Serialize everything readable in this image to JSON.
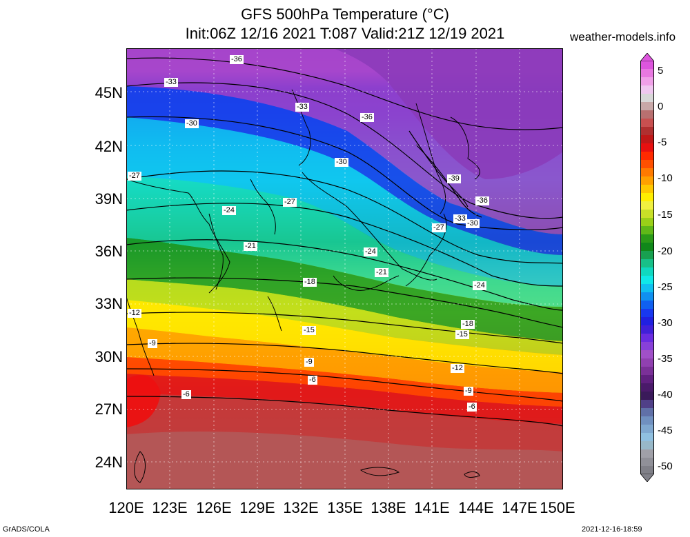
{
  "title_line1": "GFS 500hPa Temperature (°C)",
  "title_line2": "Init:06Z 12/16 2021 T:087 Valid:21Z 12/19 2021",
  "site": "weather-models.info",
  "lat_labels": [
    "45N",
    "42N",
    "39N",
    "36N",
    "33N",
    "30N",
    "27N",
    "24N"
  ],
  "lon_labels": [
    "120E",
    "123E",
    "126E",
    "129E",
    "132E",
    "135E",
    "138E",
    "141E",
    "144E",
    "147E",
    "150E"
  ],
  "contour_labels": [
    "-36",
    "-33",
    "-33",
    "-36",
    "-30",
    "-30",
    "-27",
    "-39",
    "-36",
    "-27",
    "-24",
    "-33",
    "-30",
    "-27",
    "-21",
    "-24",
    "-21",
    "-18",
    "-24",
    "-12",
    "-18",
    "-15",
    "-15",
    "-9",
    "-9",
    "-12",
    "-6",
    "-6",
    "-9",
    "-6"
  ],
  "colorbar": {
    "labels": [
      "5",
      "0",
      "-5",
      "-10",
      "-15",
      "-20",
      "-25",
      "-30",
      "-35",
      "-40",
      "-45",
      "-50"
    ],
    "colors": [
      "#dd55dd",
      "#e878e0",
      "#f0a0e8",
      "#f0c8f0",
      "#d8d8d8",
      "#c8a8a8",
      "#b87070",
      "#c85050",
      "#b03030",
      "#c01818",
      "#e81010",
      "#ff2a00",
      "#ff5000",
      "#ff7a00",
      "#ffa000",
      "#ffc800",
      "#ffee00",
      "#f0f040",
      "#c8e028",
      "#9ad018",
      "#60b818",
      "#2a9a18",
      "#10881a",
      "#18a050",
      "#18c088",
      "#10d8c0",
      "#10e8e8",
      "#10c0f0",
      "#1090f0",
      "#1060f0",
      "#1838f0",
      "#2020e0",
      "#4020d8",
      "#6a2ce0",
      "#8840d8",
      "#a050c8",
      "#9040b0",
      "#7a3098",
      "#602080",
      "#4a1a6a",
      "#3a1a5a",
      "#504088",
      "#6070a8",
      "#7090c0",
      "#80a8d0",
      "#90c0e0",
      "#98b8c8",
      "#a0a0a8",
      "#909098",
      "#808088"
    ],
    "top_arrow": "#dd55dd",
    "bottom_arrow": "#808088"
  },
  "footer_left": "GrADS/COLA",
  "footer_right": "2021-12-16-18:59"
}
